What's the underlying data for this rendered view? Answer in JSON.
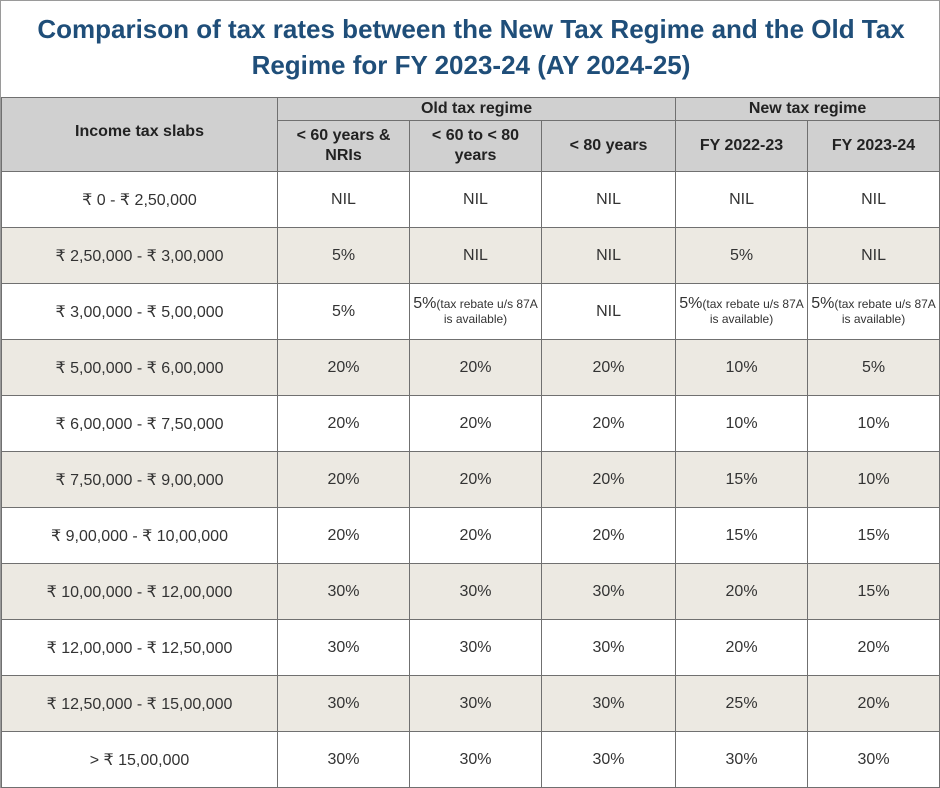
{
  "title_line1": "Comparison of tax rates between the New Tax Regime and the Old Tax",
  "title_line2": "Regime for FY 2023-24 (AY 2024-25)",
  "header": {
    "slab_col": "Income tax slabs",
    "old_group": "Old tax regime",
    "new_group": "New tax regime",
    "old_cols": [
      "< 60 years & NRIs",
      "< 60 to < 80 years",
      "< 80 years"
    ],
    "new_cols": [
      "FY 2022-23",
      "FY 2023-24"
    ]
  },
  "rows": [
    {
      "slab": "₹ 0 - ₹ 2,50,000",
      "old1": "NIL",
      "old2": "NIL",
      "old3": "NIL",
      "new1": "NIL",
      "new2": "NIL"
    },
    {
      "slab": "₹ 2,50,000 - ₹ 3,00,000",
      "old1": "5%",
      "old2": "NIL",
      "old3": "NIL",
      "new1": "5%",
      "new2": "NIL"
    },
    {
      "slab": "₹ 3,00,000 - ₹ 5,00,000",
      "old1": "5%",
      "old2": "5%(tax rebate u/s 87A is available)",
      "old3": "NIL",
      "new1": "5%(tax rebate u/s 87A is available)",
      "new2": "5%(tax rebate u/s 87A is available)"
    },
    {
      "slab": "₹ 5,00,000 - ₹ 6,00,000",
      "old1": "20%",
      "old2": "20%",
      "old3": "20%",
      "new1": "10%",
      "new2": "5%"
    },
    {
      "slab": "₹ 6,00,000 - ₹ 7,50,000",
      "old1": "20%",
      "old2": "20%",
      "old3": "20%",
      "new1": "10%",
      "new2": "10%"
    },
    {
      "slab": "₹ 7,50,000 - ₹ 9,00,000",
      "old1": "20%",
      "old2": "20%",
      "old3": "20%",
      "new1": "15%",
      "new2": "10%"
    },
    {
      "slab": "₹ 9,00,000 - ₹ 10,00,000",
      "old1": "20%",
      "old2": "20%",
      "old3": "20%",
      "new1": "15%",
      "new2": "15%"
    },
    {
      "slab": "₹ 10,00,000 - ₹ 12,00,000",
      "old1": "30%",
      "old2": "30%",
      "old3": "30%",
      "new1": "20%",
      "new2": "15%"
    },
    {
      "slab": "₹ 12,00,000 - ₹ 12,50,000",
      "old1": "30%",
      "old2": "30%",
      "old3": "30%",
      "new1": "20%",
      "new2": "20%"
    },
    {
      "slab": "₹ 12,50,000 - ₹ 15,00,000",
      "old1": "30%",
      "old2": "30%",
      "old3": "30%",
      "new1": "25%",
      "new2": "20%"
    },
    {
      "slab": "> ₹ 15,00,000",
      "old1": "30%",
      "old2": "30%",
      "old3": "30%",
      "new1": "30%",
      "new2": "30%"
    }
  ],
  "colors": {
    "title": "#1f4e79",
    "header_bg": "#d0d0d0",
    "alt_row_bg": "#ece9e2",
    "row_bg": "#ffffff"
  }
}
